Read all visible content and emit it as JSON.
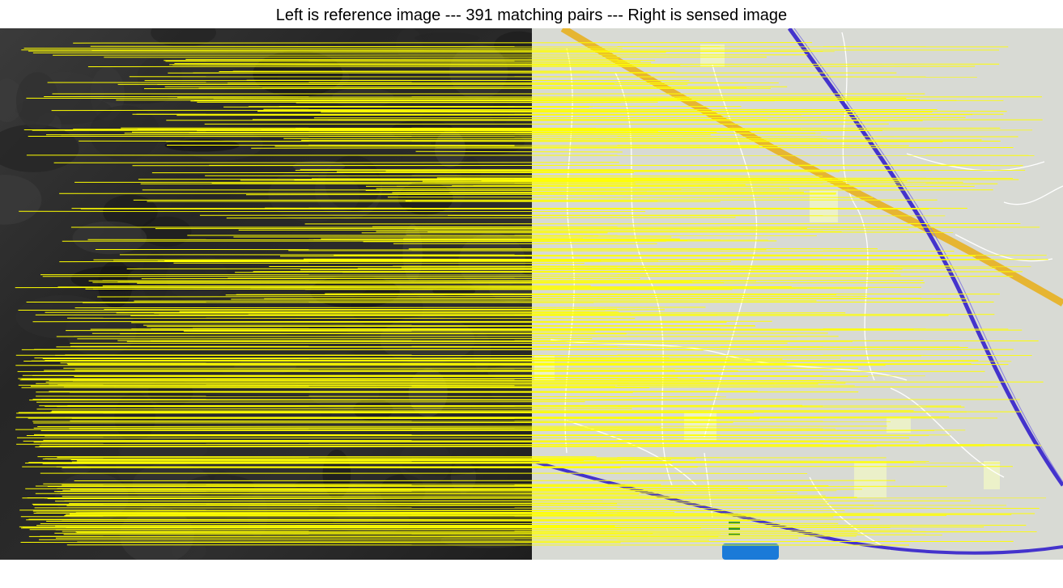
{
  "figure": {
    "title": "Left is reference image --- 391 matching pairs --- Right is sensed image",
    "match_count": 391
  },
  "colors": {
    "background": "#ffffff",
    "match_line": "#ffff00",
    "reference_dark": "#1c1c1c",
    "reference_mid": "#3a3a3a",
    "map_background": "#d8dad4",
    "map_road": "#ffffff",
    "map_railway": "#4433cc",
    "map_highway": "#e8b020",
    "map_builtup": "#eef3c8",
    "map_water": "#1a7ad8"
  },
  "panels": {
    "reference": {
      "description_name": "reference-image"
    },
    "sensed": {
      "description_name": "sensed-image"
    }
  }
}
